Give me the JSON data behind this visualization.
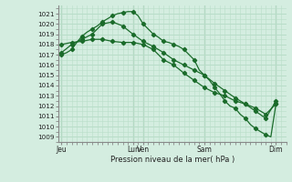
{
  "bg_color": "#d4ede0",
  "grid_color": "#b8ddc8",
  "line_color": "#1a6b2a",
  "marker_color": "#1a6b2a",
  "ylabel_values": [
    1009,
    1010,
    1011,
    1012,
    1013,
    1014,
    1015,
    1016,
    1017,
    1018,
    1019,
    1020,
    1021
  ],
  "ymin": 1008.5,
  "ymax": 1021.8,
  "xlabel": "Pression niveau de la mer( hPa )",
  "xtick_labels": [
    "Jeu",
    "Lun",
    "Ven",
    "Sam",
    "Dim"
  ],
  "xtick_positions": [
    0,
    7,
    8,
    14,
    21
  ],
  "xmin": -0.3,
  "xmax": 22.0,
  "series1": {
    "x": [
      0,
      0.5,
      1,
      1.5,
      2,
      2.5,
      3,
      3.5,
      4,
      4.5,
      5,
      5.5,
      6,
      6.5,
      7,
      7.5,
      8,
      8.5,
      9,
      9.5,
      10,
      10.5,
      11,
      11.5,
      12,
      12.5,
      13,
      13.5,
      14,
      14.5,
      15,
      15.5,
      16,
      16.5,
      17,
      17.5,
      18,
      18.5,
      19,
      19.5,
      20,
      20.5,
      21
    ],
    "y": [
      1017.0,
      1017.2,
      1017.5,
      1018.2,
      1018.8,
      1019.2,
      1019.5,
      1019.8,
      1020.2,
      1020.5,
      1020.8,
      1021.0,
      1021.1,
      1021.2,
      1021.2,
      1020.8,
      1020.0,
      1019.5,
      1019.0,
      1018.7,
      1018.3,
      1018.2,
      1018.0,
      1017.8,
      1017.5,
      1017.0,
      1016.5,
      1015.5,
      1015.0,
      1014.5,
      1013.8,
      1013.2,
      1012.5,
      1012.0,
      1011.8,
      1011.2,
      1010.8,
      1010.2,
      1009.8,
      1009.5,
      1009.2,
      1009.0,
      1012.2
    ]
  },
  "series2": {
    "x": [
      0,
      1,
      2,
      3,
      4,
      5,
      6,
      7,
      8,
      9,
      10,
      11,
      12,
      13,
      14,
      15,
      16,
      17,
      18,
      19,
      20,
      21
    ],
    "y": [
      1017.2,
      1018.0,
      1018.5,
      1019.0,
      1020.0,
      1020.2,
      1019.8,
      1019.0,
      1018.3,
      1017.8,
      1017.2,
      1016.5,
      1016.0,
      1015.5,
      1015.0,
      1014.2,
      1013.5,
      1012.8,
      1012.2,
      1011.5,
      1010.8,
      1012.5
    ]
  },
  "series3": {
    "x": [
      0,
      1,
      2,
      3,
      4,
      5,
      6,
      7,
      8,
      9,
      10,
      11,
      12,
      13,
      14,
      15,
      16,
      17,
      18,
      19,
      20,
      21
    ],
    "y": [
      1018.0,
      1018.2,
      1018.3,
      1018.5,
      1018.5,
      1018.3,
      1018.2,
      1018.2,
      1018.0,
      1017.5,
      1016.5,
      1016.0,
      1015.2,
      1014.5,
      1013.8,
      1013.3,
      1013.0,
      1012.5,
      1012.2,
      1011.8,
      1011.2,
      1012.2
    ]
  },
  "series1_markers": {
    "x": [
      0,
      1,
      2,
      3,
      4,
      5,
      6,
      7,
      8,
      9,
      10,
      11,
      12,
      13,
      14,
      15,
      16,
      17,
      18,
      19,
      20,
      21
    ],
    "y": [
      1017.0,
      1017.5,
      1018.8,
      1019.5,
      1020.2,
      1020.8,
      1021.1,
      1021.2,
      1020.0,
      1019.0,
      1018.3,
      1018.0,
      1017.5,
      1016.5,
      1015.0,
      1013.8,
      1012.5,
      1011.8,
      1010.8,
      1009.8,
      1009.2,
      1012.2
    ]
  },
  "vline_positions": [
    0,
    7,
    8,
    14,
    21
  ],
  "vline_color": "#558866"
}
